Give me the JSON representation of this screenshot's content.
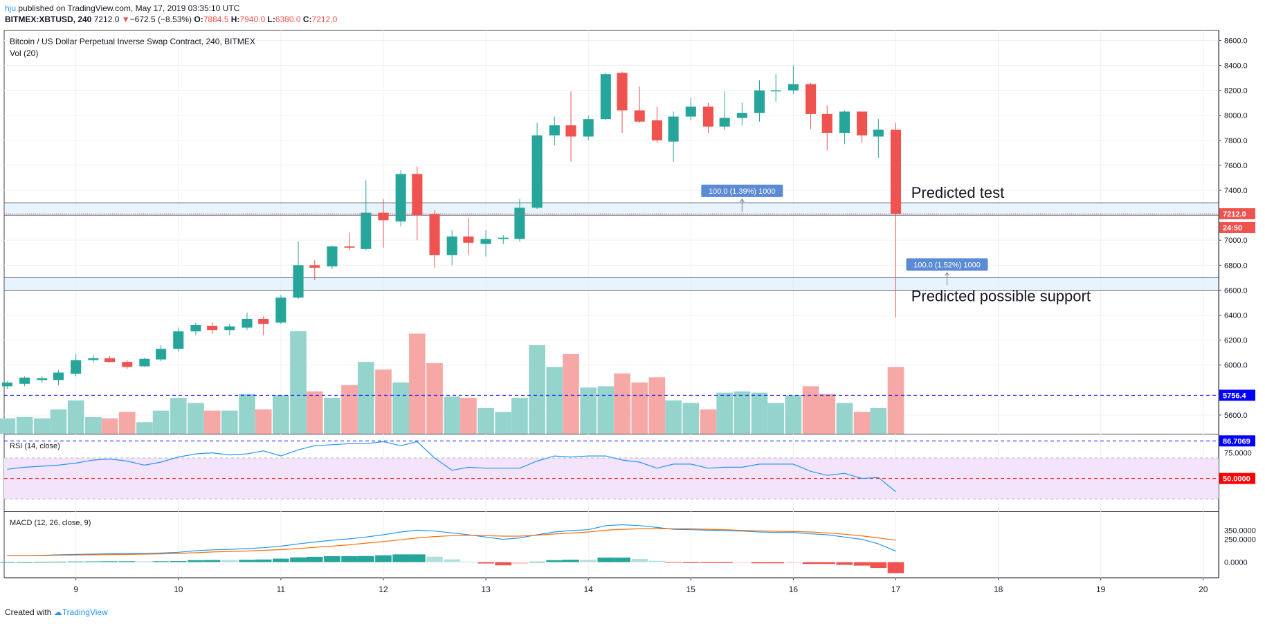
{
  "header": {
    "publisher": "hju",
    "published_text": "published on TradingView.com, May 17, 2019 03:35:10 UTC",
    "symbol": "BITMEX:XBTUSD, 240",
    "last": "7212.0",
    "change_arrow": "▼",
    "change": "−672.5 (−8.53%)",
    "o_label": "O:",
    "o_value": "7884.5",
    "h_label": "H:",
    "h_value": "7940.0",
    "l_label": "L:",
    "l_value": "6380.0",
    "c_label": "C:",
    "c_value": "7212.0"
  },
  "footer": {
    "created_with": "Created with",
    "brand": "TradingView"
  },
  "colors": {
    "up": "#26a69a",
    "down": "#ef5350",
    "up_vol": "#94d4cd",
    "down_vol": "#f5a8a6",
    "accent": "#2196f3"
  },
  "chart_data": [
    {
      "type": "candlestick",
      "title": "Bitcoin / US Dollar Perpetual Inverse Swap Contract, 240, BITMEX",
      "ylim": [
        5450,
        8680
      ],
      "yticks": [
        8600,
        8400,
        8200,
        8000,
        7800,
        7600,
        7400,
        7000,
        6800,
        6600,
        6400,
        6200,
        6000,
        5600
      ],
      "ytick_labels": [
        "8600.0",
        "8400.0",
        "8200.0",
        "8000.0",
        "7800.0",
        "7600.0",
        "7400.0",
        "7000.0",
        "6800.0",
        "6600.0",
        "6400.0",
        "6200.0",
        "6000.0",
        "5600.0"
      ],
      "x_range": [
        8.3,
        20.15
      ],
      "x_ticks": [
        9,
        10,
        11,
        12,
        13,
        14,
        15,
        16,
        17,
        18,
        19,
        20
      ],
      "x_tick_labels": [
        "9",
        "10",
        "11",
        "12",
        "13",
        "14",
        "15",
        "16",
        "17",
        "18",
        "19",
        "20"
      ],
      "grid": true,
      "last_price_label": "7212.0",
      "countdown_label": "24:50",
      "candles": [
        {
          "x": 8.33,
          "o": 5830,
          "h": 5870,
          "l": 5810,
          "c": 5860
        },
        {
          "x": 8.5,
          "o": 5850,
          "h": 5910,
          "l": 5830,
          "c": 5900
        },
        {
          "x": 8.67,
          "o": 5880,
          "h": 5910,
          "l": 5860,
          "c": 5895
        },
        {
          "x": 8.83,
          "o": 5880,
          "h": 5960,
          "l": 5840,
          "c": 5940
        },
        {
          "x": 9.0,
          "o": 5930,
          "h": 6090,
          "l": 5910,
          "c": 6040
        },
        {
          "x": 9.17,
          "o": 6040,
          "h": 6080,
          "l": 6020,
          "c": 6055
        },
        {
          "x": 9.33,
          "o": 6055,
          "h": 6070,
          "l": 6020,
          "c": 6025
        },
        {
          "x": 9.5,
          "o": 6025,
          "h": 6040,
          "l": 5970,
          "c": 5985
        },
        {
          "x": 9.67,
          "o": 5990,
          "h": 6060,
          "l": 5985,
          "c": 6050
        },
        {
          "x": 9.83,
          "o": 6045,
          "h": 6160,
          "l": 6030,
          "c": 6130
        },
        {
          "x": 10.0,
          "o": 6130,
          "h": 6300,
          "l": 6110,
          "c": 6270
        },
        {
          "x": 10.17,
          "o": 6270,
          "h": 6340,
          "l": 6240,
          "c": 6320
        },
        {
          "x": 10.33,
          "o": 6315,
          "h": 6340,
          "l": 6250,
          "c": 6280
        },
        {
          "x": 10.5,
          "o": 6280,
          "h": 6330,
          "l": 6240,
          "c": 6310
        },
        {
          "x": 10.67,
          "o": 6300,
          "h": 6420,
          "l": 6280,
          "c": 6370
        },
        {
          "x": 10.83,
          "o": 6370,
          "h": 6390,
          "l": 6240,
          "c": 6330
        },
        {
          "x": 11.0,
          "o": 6340,
          "h": 6560,
          "l": 6330,
          "c": 6540
        },
        {
          "x": 11.17,
          "o": 6540,
          "h": 6990,
          "l": 6530,
          "c": 6800
        },
        {
          "x": 11.33,
          "o": 6800,
          "h": 6840,
          "l": 6680,
          "c": 6780
        },
        {
          "x": 11.5,
          "o": 6790,
          "h": 6960,
          "l": 6770,
          "c": 6950
        },
        {
          "x": 11.67,
          "o": 6950,
          "h": 7060,
          "l": 6920,
          "c": 6940
        },
        {
          "x": 11.83,
          "o": 6930,
          "h": 7480,
          "l": 6920,
          "c": 7220
        },
        {
          "x": 12.0,
          "o": 7220,
          "h": 7330,
          "l": 6940,
          "c": 7160
        },
        {
          "x": 12.17,
          "o": 7150,
          "h": 7560,
          "l": 7110,
          "c": 7530
        },
        {
          "x": 12.33,
          "o": 7530,
          "h": 7590,
          "l": 7000,
          "c": 7200
        },
        {
          "x": 12.5,
          "o": 7210,
          "h": 7240,
          "l": 6780,
          "c": 6880
        },
        {
          "x": 12.67,
          "o": 6880,
          "h": 7080,
          "l": 6800,
          "c": 7030
        },
        {
          "x": 12.83,
          "o": 7030,
          "h": 7180,
          "l": 6880,
          "c": 6980
        },
        {
          "x": 13.0,
          "o": 6970,
          "h": 7080,
          "l": 6870,
          "c": 7010
        },
        {
          "x": 13.17,
          "o": 7010,
          "h": 7040,
          "l": 6970,
          "c": 7020
        },
        {
          "x": 13.33,
          "o": 7010,
          "h": 7330,
          "l": 6990,
          "c": 7260
        },
        {
          "x": 13.5,
          "o": 7260,
          "h": 7940,
          "l": 7250,
          "c": 7840
        },
        {
          "x": 13.67,
          "o": 7840,
          "h": 7990,
          "l": 7760,
          "c": 7920
        },
        {
          "x": 13.83,
          "o": 7920,
          "h": 8190,
          "l": 7630,
          "c": 7830
        },
        {
          "x": 14.0,
          "o": 7830,
          "h": 8000,
          "l": 7800,
          "c": 7970
        },
        {
          "x": 14.17,
          "o": 7970,
          "h": 8340,
          "l": 7960,
          "c": 8330
        },
        {
          "x": 14.33,
          "o": 8340,
          "h": 8350,
          "l": 7860,
          "c": 8040
        },
        {
          "x": 14.5,
          "o": 8040,
          "h": 8230,
          "l": 7940,
          "c": 7950
        },
        {
          "x": 14.67,
          "o": 7960,
          "h": 8070,
          "l": 7780,
          "c": 7800
        },
        {
          "x": 14.83,
          "o": 7790,
          "h": 8030,
          "l": 7630,
          "c": 7990
        },
        {
          "x": 15.0,
          "o": 7990,
          "h": 8140,
          "l": 7960,
          "c": 8070
        },
        {
          "x": 15.17,
          "o": 8070,
          "h": 8100,
          "l": 7860,
          "c": 7910
        },
        {
          "x": 15.33,
          "o": 7910,
          "h": 8190,
          "l": 7880,
          "c": 7980
        },
        {
          "x": 15.5,
          "o": 7980,
          "h": 8100,
          "l": 7920,
          "c": 8020
        },
        {
          "x": 15.67,
          "o": 8020,
          "h": 8280,
          "l": 7950,
          "c": 8200
        },
        {
          "x": 15.83,
          "o": 8200,
          "h": 8330,
          "l": 8110,
          "c": 8200
        },
        {
          "x": 16.0,
          "o": 8200,
          "h": 8400,
          "l": 8170,
          "c": 8250
        },
        {
          "x": 16.17,
          "o": 8250,
          "h": 8260,
          "l": 7890,
          "c": 8010
        },
        {
          "x": 16.33,
          "o": 8010,
          "h": 8080,
          "l": 7720,
          "c": 7860
        },
        {
          "x": 16.5,
          "o": 7860,
          "h": 8040,
          "l": 7770,
          "c": 8030
        },
        {
          "x": 16.67,
          "o": 8030,
          "h": 8030,
          "l": 7780,
          "c": 7840
        },
        {
          "x": 16.83,
          "o": 7830,
          "h": 7970,
          "l": 7660,
          "c": 7885
        },
        {
          "x": 17.0,
          "o": 7884.5,
          "h": 7940,
          "l": 6380,
          "c": 7212
        }
      ],
      "annotations": [
        {
          "type": "band",
          "y1": 7200,
          "y2": 7300
        },
        {
          "type": "band",
          "y1": 6600,
          "y2": 6700
        },
        {
          "type": "text",
          "x": 17.15,
          "y": 7340,
          "text": "Predicted test"
        },
        {
          "type": "text",
          "x": 17.15,
          "y": 6510,
          "text": "Predicted possible support"
        },
        {
          "type": "badge",
          "x": 15.5,
          "y": 7395,
          "text": "100.0 (1.39%) 1000"
        },
        {
          "type": "badge",
          "x": 17.5,
          "y": 6805,
          "text": "100.0 (1.52%) 1000"
        }
      ]
    },
    {
      "type": "bar",
      "title": "Vol (20)",
      "ma_label": "5756.4",
      "ma_value": 0.3,
      "volumes": [
        0.12,
        0.13,
        0.12,
        0.19,
        0.26,
        0.13,
        0.12,
        0.17,
        0.09,
        0.18,
        0.28,
        0.24,
        0.18,
        0.18,
        0.31,
        0.19,
        0.3,
        0.8,
        0.33,
        0.28,
        0.38,
        0.56,
        0.5,
        0.4,
        0.78,
        0.55,
        0.29,
        0.28,
        0.2,
        0.17,
        0.28,
        0.69,
        0.52,
        0.62,
        0.36,
        0.37,
        0.47,
        0.4,
        0.44,
        0.26,
        0.24,
        0.19,
        0.32,
        0.33,
        0.32,
        0.24,
        0.3,
        0.37,
        0.31,
        0.24,
        0.17,
        0.2,
        0.52
      ]
    },
    {
      "type": "line",
      "title": "RSI (14, close)",
      "ylim": [
        18,
        93
      ],
      "ytick_labels": [
        "75.0000"
      ],
      "level_labels": [
        "86.7069",
        "50.0000"
      ],
      "levels": [
        86.7069,
        50
      ],
      "band": [
        30,
        70
      ],
      "values": [
        59,
        61,
        62,
        63,
        65,
        68,
        69,
        67,
        63,
        66,
        71,
        74,
        75,
        73,
        74,
        77,
        72,
        78,
        82,
        83,
        84,
        84,
        86,
        82,
        86,
        70,
        58,
        61,
        60,
        60,
        60,
        67,
        72,
        71,
        72,
        72,
        68,
        66,
        60,
        64,
        64,
        60,
        61,
        61,
        64,
        64,
        64,
        57,
        53,
        55,
        50,
        51,
        37
      ]
    },
    {
      "type": "line",
      "title": "MACD (12, 26, close, 9)",
      "ylim": [
        -170,
        550
      ],
      "ytick_labels": [
        "350.0000",
        "250.0000",
        "0.0000"
      ],
      "ytick_values": [
        350,
        250,
        0
      ],
      "macd": [
        70,
        70,
        75,
        80,
        85,
        88,
        93,
        95,
        97,
        100,
        108,
        125,
        135,
        140,
        148,
        158,
        175,
        200,
        220,
        240,
        255,
        275,
        300,
        330,
        350,
        340,
        320,
        300,
        275,
        250,
        265,
        300,
        330,
        345,
        355,
        400,
        410,
        400,
        380,
        360,
        355,
        350,
        345,
        340,
        330,
        325,
        325,
        310,
        300,
        275,
        250,
        200,
        120
      ],
      "signal": [
        70,
        70,
        72,
        75,
        78,
        80,
        83,
        85,
        88,
        90,
        96,
        103,
        111,
        117,
        122,
        129,
        137,
        148,
        162,
        175,
        190,
        208,
        225,
        245,
        265,
        280,
        290,
        295,
        290,
        285,
        285,
        295,
        308,
        318,
        330,
        350,
        360,
        365,
        365,
        365,
        365,
        360,
        355,
        348,
        343,
        338,
        335,
        330,
        320,
        305,
        288,
        265,
        240
      ],
      "histogram": [
        0,
        0,
        3,
        5,
        7,
        8,
        10,
        10,
        9,
        10,
        12,
        22,
        24,
        23,
        26,
        29,
        38,
        52,
        58,
        65,
        65,
        67,
        75,
        85,
        85,
        60,
        30,
        5,
        -15,
        -35,
        -20,
        5,
        22,
        27,
        25,
        50,
        50,
        35,
        15,
        -5,
        -10,
        -10,
        -10,
        -8,
        -13,
        -13,
        -10,
        -20,
        -20,
        -30,
        -38,
        -65,
        -120
      ]
    }
  ]
}
